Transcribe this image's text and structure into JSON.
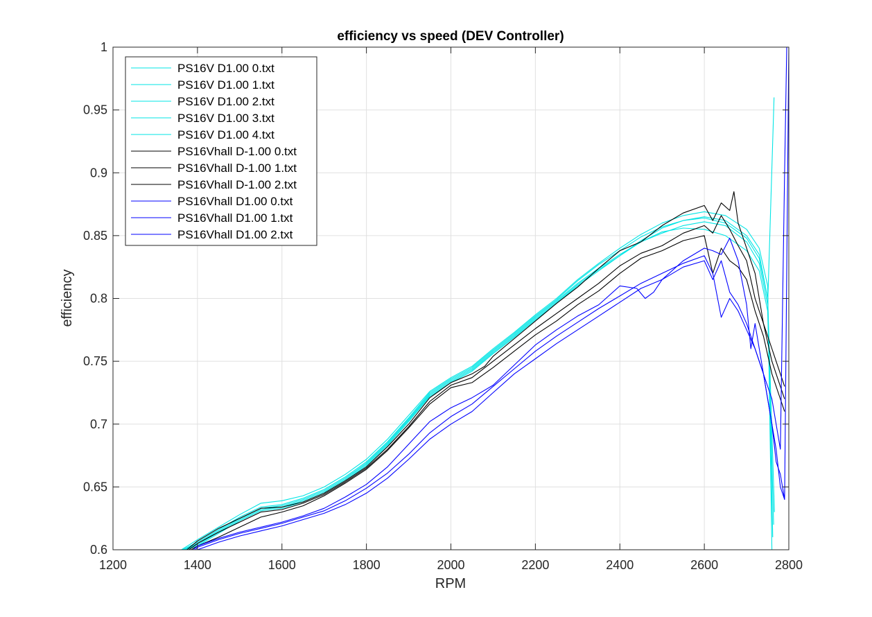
{
  "chart_data": {
    "type": "line",
    "title": "efficiency vs speed (DEV Controller)",
    "xlabel": "RPM",
    "ylabel": "efficiency",
    "xlim": [
      1200,
      2800
    ],
    "ylim": [
      0.6,
      1.0
    ],
    "xticks": [
      1200,
      1400,
      1600,
      1800,
      2000,
      2200,
      2400,
      2600,
      2800
    ],
    "xtick_labels": [
      "1200",
      "1400",
      "1600",
      "1800",
      "2000",
      "2200",
      "2400",
      "2600",
      "2800"
    ],
    "yticks": [
      0.6,
      0.65,
      0.7,
      0.75,
      0.8,
      0.85,
      0.9,
      0.95,
      1.0
    ],
    "ytick_labels": [
      "0.6",
      "0.65",
      "0.7",
      "0.75",
      "0.8",
      "0.85",
      "0.9",
      "0.95",
      "1"
    ],
    "grid": true,
    "legend_position": "top-left",
    "series": [
      {
        "name": "PS16V D1.00 0.txt",
        "color": "#00e5e5",
        "x": [
          1362,
          1400,
          1450,
          1500,
          1550,
          1600,
          1650,
          1700,
          1750,
          1800,
          1850,
          1900,
          1950,
          2000,
          2050,
          2100,
          2150,
          2200,
          2250,
          2300,
          2350,
          2400,
          2450,
          2500,
          2550,
          2600,
          2650,
          2700,
          2730,
          2750,
          2760
        ],
        "y": [
          0.6,
          0.608,
          0.618,
          0.628,
          0.637,
          0.639,
          0.643,
          0.65,
          0.66,
          0.672,
          0.688,
          0.707,
          0.726,
          0.737,
          0.746,
          0.76,
          0.773,
          0.787,
          0.8,
          0.815,
          0.828,
          0.84,
          0.851,
          0.86,
          0.866,
          0.869,
          0.866,
          0.855,
          0.84,
          0.81,
          0.6
        ]
      },
      {
        "name": "PS16V D1.00 1.txt",
        "color": "#00e5e5",
        "x": [
          1365,
          1400,
          1450,
          1500,
          1550,
          1600,
          1650,
          1700,
          1750,
          1800,
          1850,
          1900,
          1950,
          2000,
          2050,
          2100,
          2150,
          2200,
          2250,
          2300,
          2350,
          2400,
          2450,
          2500,
          2550,
          2600,
          2650,
          2700,
          2730,
          2750,
          2762
        ],
        "y": [
          0.6,
          0.606,
          0.616,
          0.626,
          0.634,
          0.636,
          0.641,
          0.648,
          0.658,
          0.67,
          0.686,
          0.705,
          0.725,
          0.736,
          0.745,
          0.759,
          0.772,
          0.786,
          0.799,
          0.814,
          0.827,
          0.838,
          0.849,
          0.857,
          0.862,
          0.864,
          0.86,
          0.848,
          0.832,
          0.8,
          0.61
        ]
      },
      {
        "name": "PS16V D1.00 2.txt",
        "color": "#00e5e5",
        "x": [
          1368,
          1400,
          1450,
          1500,
          1550,
          1600,
          1650,
          1700,
          1750,
          1800,
          1850,
          1900,
          1950,
          2000,
          2050,
          2100,
          2150,
          2200,
          2250,
          2300,
          2350,
          2400,
          2450,
          2500,
          2550,
          2600,
          2650,
          2700,
          2730,
          2750,
          2764
        ],
        "y": [
          0.6,
          0.605,
          0.615,
          0.625,
          0.633,
          0.635,
          0.64,
          0.647,
          0.657,
          0.669,
          0.685,
          0.704,
          0.724,
          0.735,
          0.744,
          0.758,
          0.771,
          0.785,
          0.798,
          0.812,
          0.824,
          0.835,
          0.845,
          0.853,
          0.856,
          0.855,
          0.85,
          0.838,
          0.822,
          0.79,
          0.62
        ]
      },
      {
        "name": "PS16V D1.00 3.txt",
        "color": "#00e5e5",
        "x": [
          1370,
          1400,
          1450,
          1500,
          1550,
          1600,
          1650,
          1700,
          1750,
          1800,
          1850,
          1900,
          1950,
          2000,
          2050,
          2100,
          2150,
          2200,
          2250,
          2300,
          2350,
          2400,
          2450,
          2500,
          2550,
          2600,
          2650,
          2700,
          2730,
          2750,
          2765
        ],
        "y": [
          0.6,
          0.604,
          0.614,
          0.624,
          0.632,
          0.634,
          0.639,
          0.646,
          0.656,
          0.668,
          0.684,
          0.703,
          0.723,
          0.734,
          0.743,
          0.757,
          0.77,
          0.784,
          0.797,
          0.811,
          0.823,
          0.834,
          0.845,
          0.852,
          0.858,
          0.861,
          0.858,
          0.845,
          0.828,
          0.795,
          0.96
        ]
      },
      {
        "name": "PS16V D1.00 4.txt",
        "color": "#00e5e5",
        "x": [
          1372,
          1400,
          1450,
          1500,
          1550,
          1600,
          1650,
          1700,
          1750,
          1800,
          1850,
          1900,
          1950,
          2000,
          2050,
          2100,
          2150,
          2200,
          2250,
          2300,
          2350,
          2400,
          2450,
          2500,
          2550,
          2600,
          2650,
          2700,
          2730,
          2750,
          2766
        ],
        "y": [
          0.6,
          0.603,
          0.613,
          0.623,
          0.631,
          0.633,
          0.638,
          0.645,
          0.655,
          0.667,
          0.683,
          0.702,
          0.722,
          0.733,
          0.742,
          0.756,
          0.769,
          0.783,
          0.796,
          0.81,
          0.822,
          0.834,
          0.846,
          0.856,
          0.862,
          0.865,
          0.862,
          0.85,
          0.835,
          0.8,
          0.63
        ]
      },
      {
        "name": "PS16Vhall D-1.00 0.txt",
        "color": "#000000",
        "x": [
          1375,
          1400,
          1450,
          1500,
          1550,
          1600,
          1650,
          1700,
          1750,
          1800,
          1850,
          1900,
          1950,
          2000,
          2050,
          2080,
          2100,
          2150,
          2200,
          2250,
          2300,
          2350,
          2400,
          2450,
          2500,
          2550,
          2600,
          2620,
          2640,
          2660,
          2670,
          2680,
          2700,
          2720,
          2740,
          2760,
          2780,
          2790
        ],
        "y": [
          0.6,
          0.607,
          0.617,
          0.625,
          0.633,
          0.634,
          0.638,
          0.645,
          0.655,
          0.666,
          0.682,
          0.7,
          0.721,
          0.733,
          0.74,
          0.746,
          0.754,
          0.768,
          0.782,
          0.796,
          0.809,
          0.824,
          0.838,
          0.845,
          0.858,
          0.868,
          0.874,
          0.862,
          0.876,
          0.87,
          0.885,
          0.86,
          0.84,
          0.82,
          0.78,
          0.76,
          0.74,
          0.73
        ]
      },
      {
        "name": "PS16Vhall D-1.00 1.txt",
        "color": "#000000",
        "x": [
          1380,
          1400,
          1450,
          1500,
          1550,
          1600,
          1650,
          1700,
          1750,
          1800,
          1850,
          1900,
          1950,
          2000,
          2050,
          2100,
          2150,
          2200,
          2250,
          2300,
          2350,
          2400,
          2450,
          2500,
          2550,
          2600,
          2620,
          2640,
          2660,
          2680,
          2700,
          2720,
          2740,
          2760,
          2780,
          2790
        ],
        "y": [
          0.6,
          0.605,
          0.614,
          0.622,
          0.63,
          0.632,
          0.637,
          0.644,
          0.654,
          0.665,
          0.68,
          0.698,
          0.718,
          0.731,
          0.737,
          0.75,
          0.763,
          0.776,
          0.788,
          0.8,
          0.812,
          0.826,
          0.836,
          0.842,
          0.852,
          0.858,
          0.852,
          0.866,
          0.855,
          0.842,
          0.83,
          0.8,
          0.78,
          0.75,
          0.73,
          0.72
        ]
      },
      {
        "name": "PS16Vhall D-1.00 2.txt",
        "color": "#000000",
        "x": [
          1385,
          1400,
          1450,
          1500,
          1550,
          1600,
          1650,
          1700,
          1750,
          1800,
          1850,
          1900,
          1950,
          2000,
          2050,
          2100,
          2150,
          2200,
          2250,
          2300,
          2350,
          2400,
          2450,
          2500,
          2550,
          2600,
          2620,
          2640,
          2660,
          2680,
          2700,
          2720,
          2740,
          2760,
          2780,
          2790
        ],
        "y": [
          0.6,
          0.603,
          0.61,
          0.618,
          0.626,
          0.63,
          0.635,
          0.643,
          0.653,
          0.664,
          0.679,
          0.697,
          0.716,
          0.729,
          0.733,
          0.745,
          0.758,
          0.771,
          0.782,
          0.795,
          0.806,
          0.82,
          0.832,
          0.838,
          0.846,
          0.85,
          0.82,
          0.84,
          0.83,
          0.825,
          0.815,
          0.79,
          0.77,
          0.74,
          0.72,
          0.71
        ]
      },
      {
        "name": "PS16Vhall D1.00 0.txt",
        "color": "#0000ff",
        "x": [
          1390,
          1400,
          1450,
          1500,
          1550,
          1600,
          1650,
          1700,
          1750,
          1800,
          1850,
          1900,
          1950,
          2000,
          2050,
          2100,
          2150,
          2200,
          2250,
          2300,
          2350,
          2400,
          2440,
          2460,
          2480,
          2500,
          2550,
          2600,
          2620,
          2640,
          2660,
          2680,
          2700,
          2710,
          2720,
          2740,
          2760,
          2770,
          2780,
          2790,
          2795
        ],
        "y": [
          0.6,
          0.603,
          0.609,
          0.614,
          0.618,
          0.622,
          0.627,
          0.633,
          0.642,
          0.652,
          0.666,
          0.684,
          0.702,
          0.713,
          0.721,
          0.731,
          0.747,
          0.763,
          0.775,
          0.786,
          0.795,
          0.81,
          0.808,
          0.8,
          0.805,
          0.815,
          0.83,
          0.84,
          0.838,
          0.835,
          0.848,
          0.83,
          0.795,
          0.76,
          0.78,
          0.74,
          0.72,
          0.7,
          0.68,
          0.9,
          1.0
        ]
      },
      {
        "name": "PS16Vhall D1.00 1.txt",
        "color": "#0000ff",
        "x": [
          1395,
          1400,
          1450,
          1500,
          1550,
          1600,
          1650,
          1700,
          1750,
          1800,
          1850,
          1900,
          1950,
          2000,
          2050,
          2100,
          2150,
          2200,
          2250,
          2300,
          2350,
          2400,
          2450,
          2500,
          2550,
          2600,
          2620,
          2640,
          2660,
          2680,
          2700,
          2720,
          2740,
          2760,
          2770,
          2780,
          2790
        ],
        "y": [
          0.6,
          0.602,
          0.608,
          0.613,
          0.617,
          0.621,
          0.626,
          0.631,
          0.639,
          0.649,
          0.661,
          0.676,
          0.693,
          0.706,
          0.716,
          0.73,
          0.744,
          0.758,
          0.77,
          0.781,
          0.792,
          0.802,
          0.812,
          0.82,
          0.828,
          0.834,
          0.82,
          0.785,
          0.8,
          0.79,
          0.775,
          0.76,
          0.74,
          0.7,
          0.68,
          0.65,
          0.64
        ]
      },
      {
        "name": "PS16Vhall D1.00 2.txt",
        "color": "#0000ff",
        "x": [
          1400,
          1450,
          1500,
          1550,
          1600,
          1650,
          1700,
          1750,
          1800,
          1850,
          1900,
          1950,
          2000,
          2050,
          2100,
          2150,
          2200,
          2250,
          2300,
          2350,
          2400,
          2450,
          2500,
          2550,
          2600,
          2620,
          2640,
          2660,
          2680,
          2700,
          2720,
          2740,
          2760,
          2770,
          2780,
          2790,
          2800
        ],
        "y": [
          0.6,
          0.606,
          0.611,
          0.615,
          0.619,
          0.624,
          0.629,
          0.636,
          0.645,
          0.657,
          0.672,
          0.688,
          0.7,
          0.71,
          0.725,
          0.74,
          0.752,
          0.764,
          0.775,
          0.786,
          0.797,
          0.808,
          0.815,
          0.825,
          0.83,
          0.815,
          0.83,
          0.805,
          0.795,
          0.78,
          0.76,
          0.74,
          0.7,
          0.67,
          0.66,
          0.64,
          1.0
        ]
      }
    ]
  }
}
